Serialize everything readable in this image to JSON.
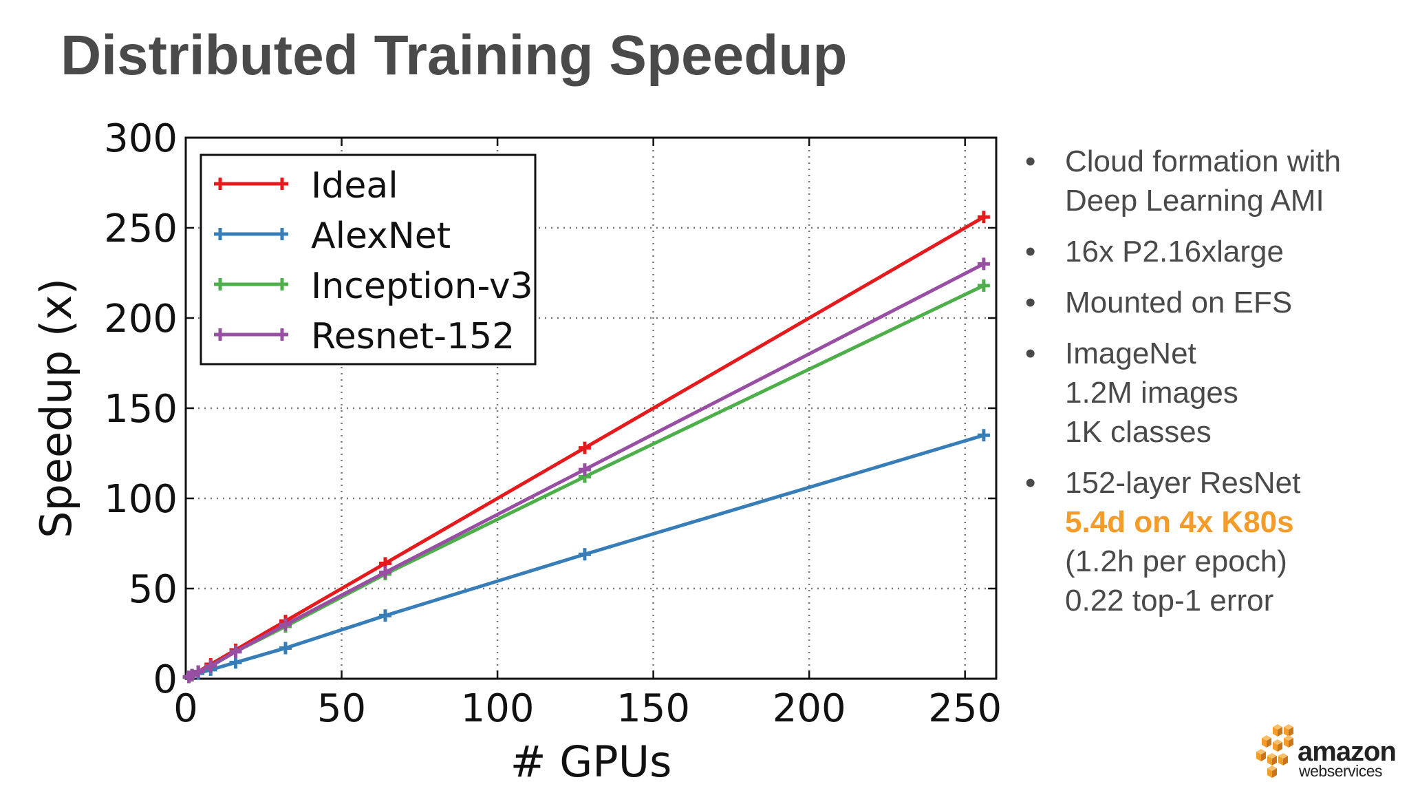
{
  "title": "Distributed Training Speedup",
  "chart_data": {
    "type": "line",
    "xlabel": "# GPUs",
    "ylabel": "Speedup (x)",
    "xlim": [
      0,
      260
    ],
    "ylim": [
      0,
      300
    ],
    "xticks": [
      0,
      50,
      100,
      150,
      200,
      250
    ],
    "yticks": [
      0,
      50,
      100,
      150,
      200,
      250,
      300
    ],
    "grid": true,
    "legend_position": "top-left",
    "x": [
      1,
      2,
      4,
      8,
      16,
      32,
      64,
      128,
      256
    ],
    "series": [
      {
        "name": "Ideal",
        "color": "#e41a1c",
        "values": [
          1,
          2,
          4,
          8,
          16,
          32,
          64,
          128,
          256
        ]
      },
      {
        "name": "AlexNet",
        "color": "#377eb8",
        "values": [
          1,
          2,
          3,
          5,
          9,
          17,
          35,
          69,
          135
        ]
      },
      {
        "name": "Inception-v3",
        "color": "#4daf4a",
        "values": [
          1,
          2,
          4,
          7,
          15,
          29,
          58,
          112,
          218
        ]
      },
      {
        "name": "Resnet-152",
        "color": "#984ea3",
        "values": [
          1,
          2,
          4,
          7,
          15,
          30,
          59,
          116,
          230
        ]
      }
    ]
  },
  "bullets": [
    {
      "lines": [
        "Cloud formation with",
        "Deep Learning AMI"
      ]
    },
    {
      "lines": [
        "16x P2.16xlarge"
      ]
    },
    {
      "lines": [
        "Mounted on EFS"
      ]
    },
    {
      "lines": [
        "ImageNet",
        "1.2M images",
        "1K classes"
      ]
    },
    {
      "lines": [
        "152-layer ResNet",
        "5.4d on 4x K80s",
        "(1.2h per epoch)",
        "0.22 top-1 error"
      ],
      "highlight_index": 1
    }
  ],
  "logo": {
    "line1": "amazon",
    "line2": "webservices",
    "color": "#f39c29"
  }
}
